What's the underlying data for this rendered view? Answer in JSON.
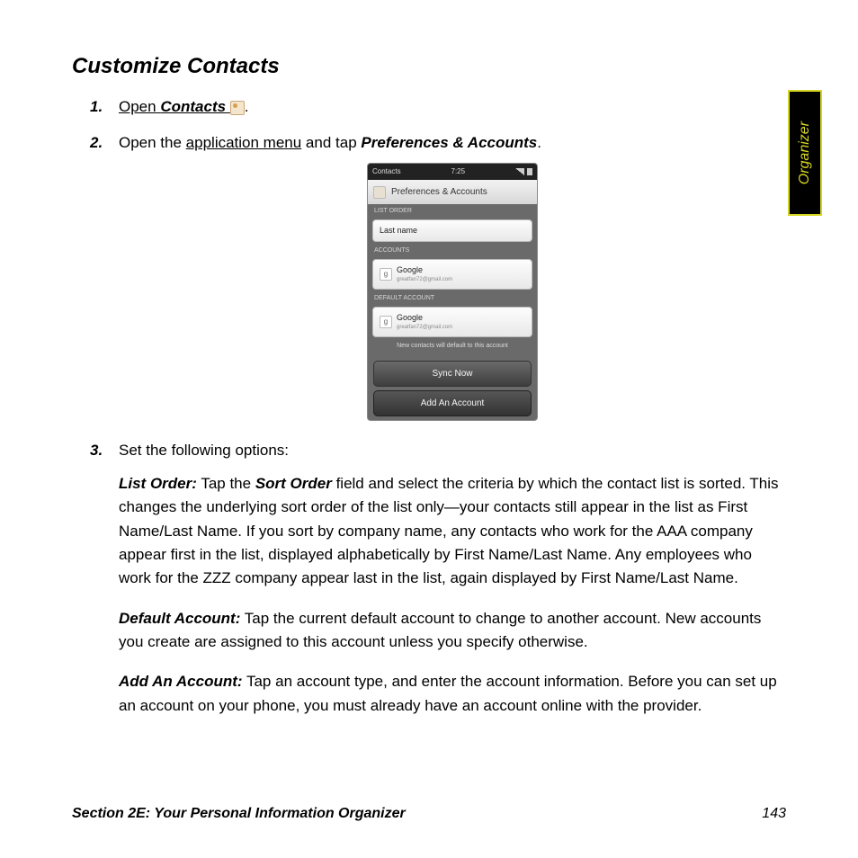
{
  "sideTab": "Organizer",
  "title": "Customize Contacts",
  "steps": {
    "s1": {
      "num": "1.",
      "open": "Open",
      "contacts": "Contacts",
      "dot": "."
    },
    "s2": {
      "num": "2.",
      "a": "Open the ",
      "link": "application menu",
      "b": " and tap ",
      "bi": "Preferences & Accounts",
      "c": "."
    },
    "s3": {
      "num": "3.",
      "text": "Set the following options:"
    }
  },
  "screenshot": {
    "status": {
      "left": "Contacts",
      "time": "7:25"
    },
    "header": "Preferences & Accounts",
    "listOrderLabel": "LIST ORDER",
    "listOrderValue": "Last name",
    "accountsLabel": "ACCOUNTS",
    "account1": {
      "name": "Google",
      "sub": "greatfan72@gmail.com"
    },
    "defaultLabel": "DEFAULT ACCOUNT",
    "account2": {
      "name": "Google",
      "sub": "greatfan72@gmail.com"
    },
    "note": "New contacts will default to this account",
    "syncBtn": "Sync Now",
    "addBtn": "Add An Account"
  },
  "body": {
    "p1_label": "List Order:",
    "p1_a": " Tap the ",
    "p1_bi": "Sort Order",
    "p1_b": " field and select the criteria by which the contact list is sorted. This changes the underlying sort order of the list only—your contacts still appear in the list as First Name/Last Name. If you sort by company name, any contacts who work for the AAA company appear first in the list, displayed alphabetically by First Name/Last Name. Any employees who work for the ZZZ company appear last in the list, again displayed by First Name/Last Name.",
    "p2_label": "Default Account:",
    "p2_a": " Tap the current default account to change to another account. New accounts you create are assigned to this account unless you specify otherwise.",
    "p3_label": "Add An Account:",
    "p3_a": " Tap an account type, and enter the account information. Before you can set up an account on your phone, you must already have an account online with the provider."
  },
  "footer": {
    "section": "Section 2E: Your Personal Information Organizer",
    "page": "143"
  }
}
